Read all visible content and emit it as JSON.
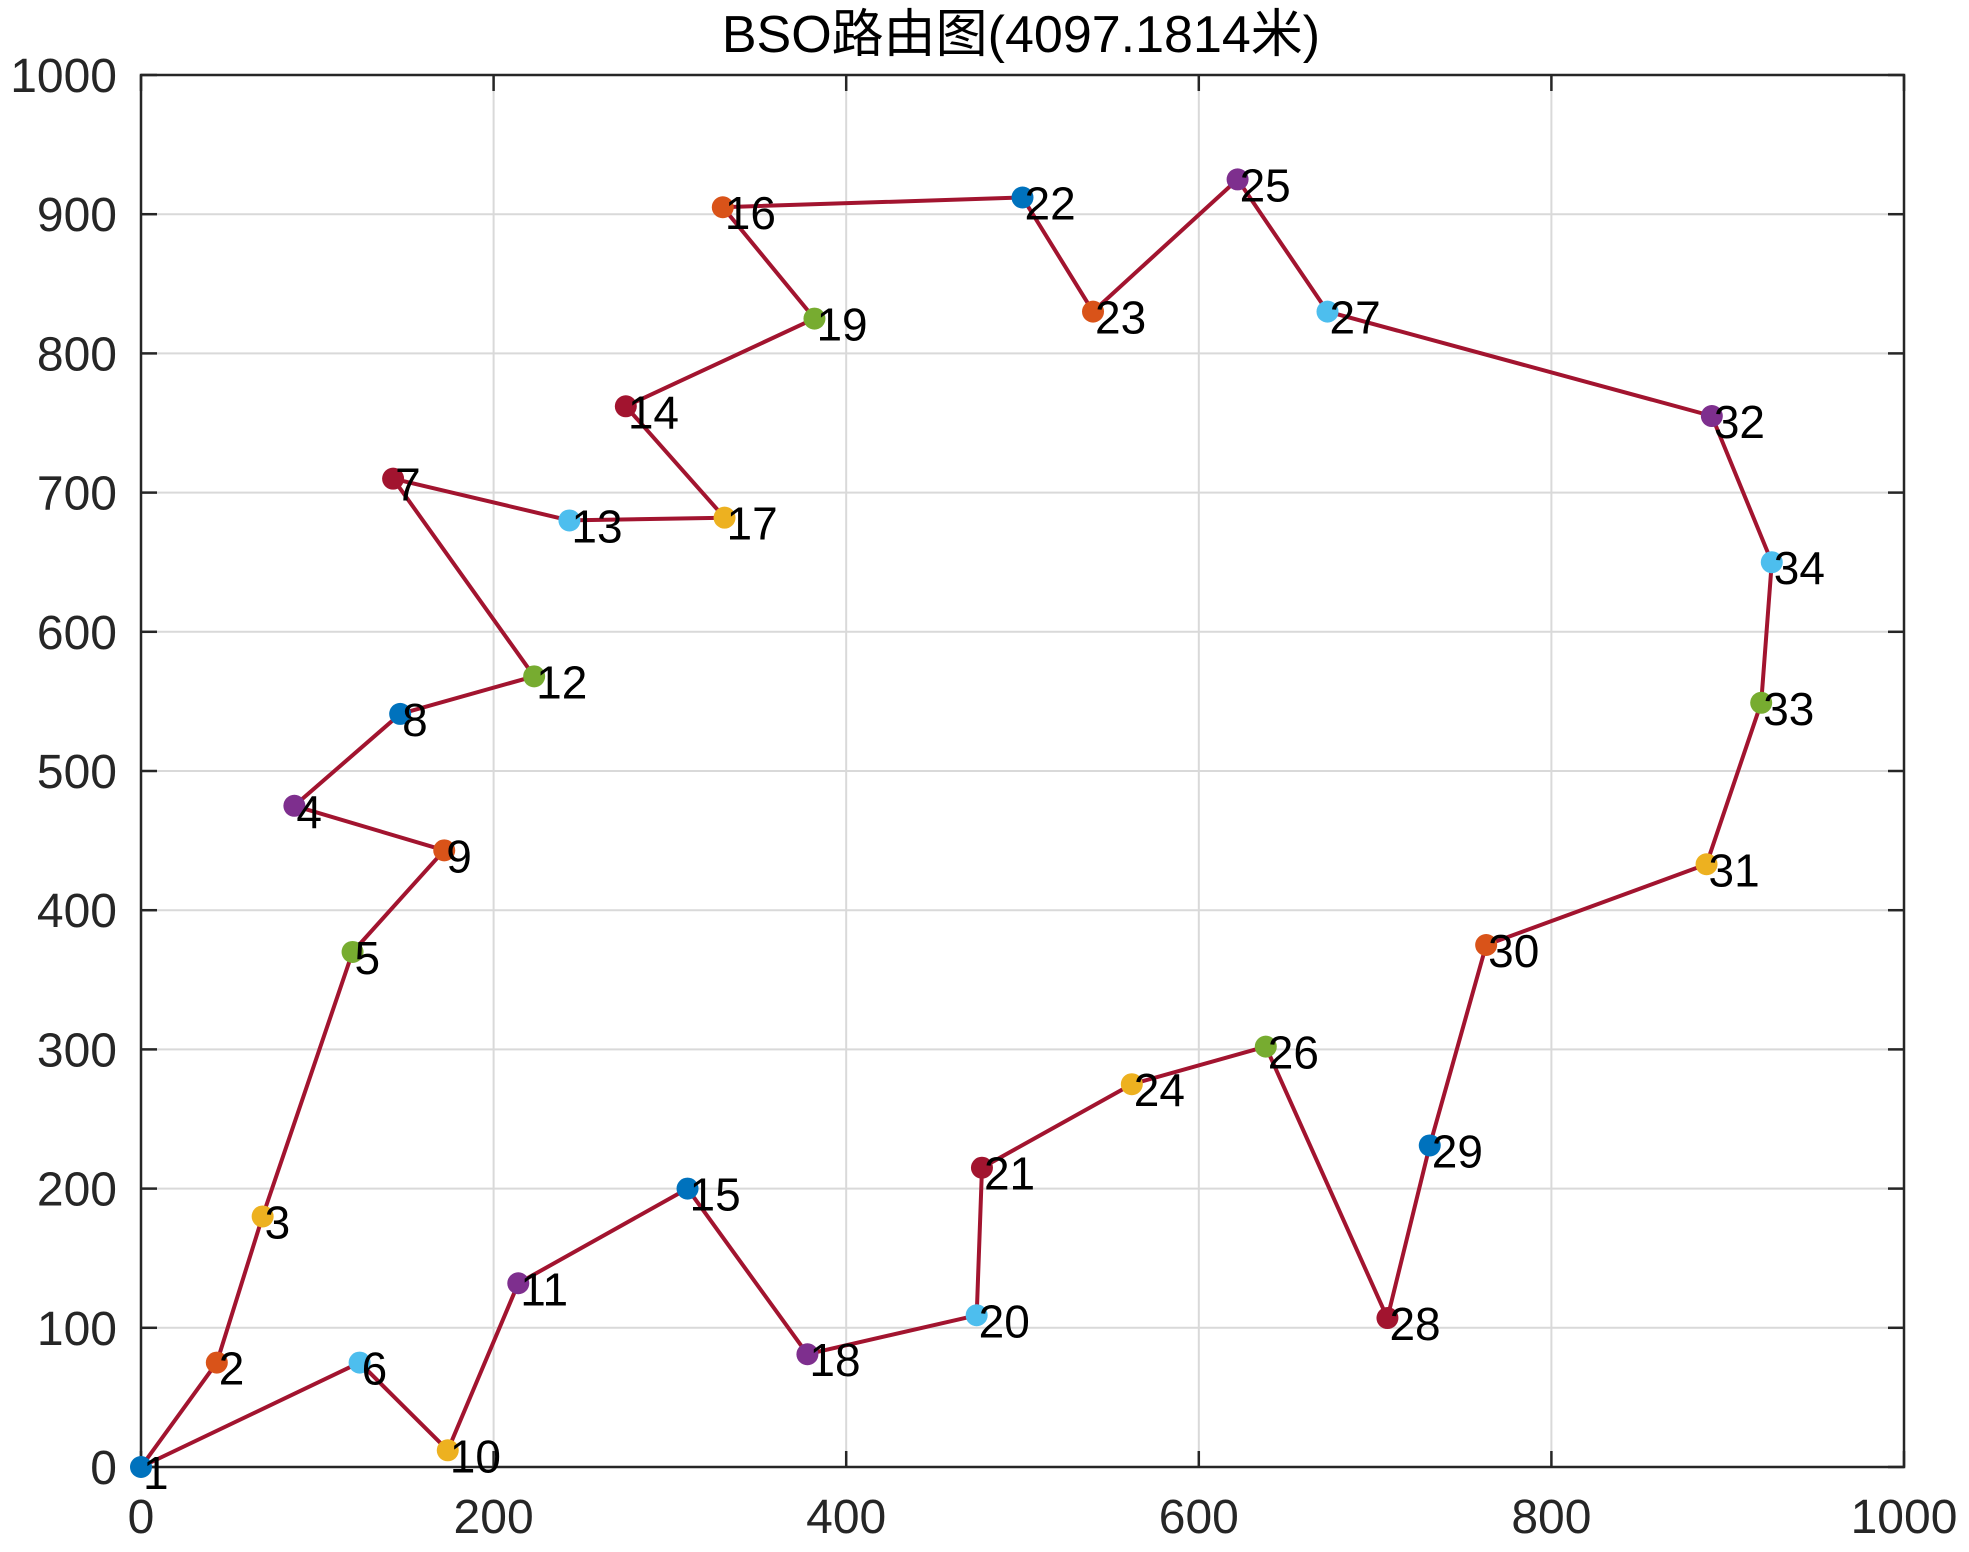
{
  "chart_data": {
    "type": "line",
    "title": "BSO路由图(4097.1814米)",
    "xlabel": "",
    "ylabel": "",
    "xlim": [
      0,
      1000
    ],
    "ylim": [
      0,
      1000
    ],
    "xticks": [
      0,
      200,
      400,
      600,
      800,
      1000
    ],
    "yticks": [
      0,
      100,
      200,
      300,
      400,
      500,
      600,
      700,
      800,
      900,
      1000
    ],
    "grid": true,
    "route_color": "#a2142f",
    "marker_colors": [
      "#0072bd",
      "#d95319",
      "#edb120",
      "#7e2f8e",
      "#77ac30",
      "#4dbeee",
      "#a2142f"
    ],
    "points": [
      {
        "id": 1,
        "x": 0,
        "y": 0
      },
      {
        "id": 2,
        "x": 43,
        "y": 75
      },
      {
        "id": 3,
        "x": 69,
        "y": 180
      },
      {
        "id": 4,
        "x": 87,
        "y": 475
      },
      {
        "id": 5,
        "x": 120,
        "y": 370
      },
      {
        "id": 6,
        "x": 124,
        "y": 75
      },
      {
        "id": 7,
        "x": 143,
        "y": 710
      },
      {
        "id": 8,
        "x": 147,
        "y": 541
      },
      {
        "id": 9,
        "x": 172,
        "y": 443
      },
      {
        "id": 10,
        "x": 174,
        "y": 12
      },
      {
        "id": 11,
        "x": 214,
        "y": 132
      },
      {
        "id": 12,
        "x": 223,
        "y": 568
      },
      {
        "id": 13,
        "x": 243,
        "y": 680
      },
      {
        "id": 14,
        "x": 275,
        "y": 762
      },
      {
        "id": 15,
        "x": 310,
        "y": 200
      },
      {
        "id": 16,
        "x": 330,
        "y": 905
      },
      {
        "id": 17,
        "x": 331,
        "y": 682
      },
      {
        "id": 18,
        "x": 378,
        "y": 81
      },
      {
        "id": 19,
        "x": 382,
        "y": 825
      },
      {
        "id": 20,
        "x": 474,
        "y": 109
      },
      {
        "id": 21,
        "x": 477,
        "y": 215
      },
      {
        "id": 22,
        "x": 500,
        "y": 912
      },
      {
        "id": 23,
        "x": 540,
        "y": 830
      },
      {
        "id": 24,
        "x": 562,
        "y": 275
      },
      {
        "id": 25,
        "x": 622,
        "y": 925
      },
      {
        "id": 26,
        "x": 638,
        "y": 302
      },
      {
        "id": 27,
        "x": 673,
        "y": 830
      },
      {
        "id": 28,
        "x": 707,
        "y": 107
      },
      {
        "id": 29,
        "x": 731,
        "y": 231
      },
      {
        "id": 30,
        "x": 763,
        "y": 375
      },
      {
        "id": 31,
        "x": 888,
        "y": 433
      },
      {
        "id": 32,
        "x": 891,
        "y": 755
      },
      {
        "id": 33,
        "x": 919,
        "y": 549
      },
      {
        "id": 34,
        "x": 925,
        "y": 650
      }
    ],
    "route": [
      1,
      2,
      3,
      5,
      9,
      4,
      8,
      12,
      7,
      13,
      17,
      14,
      19,
      16,
      22,
      23,
      25,
      27,
      32,
      34,
      33,
      31,
      30,
      29,
      28,
      26,
      24,
      21,
      20,
      18,
      15,
      11,
      10,
      6,
      1
    ]
  }
}
